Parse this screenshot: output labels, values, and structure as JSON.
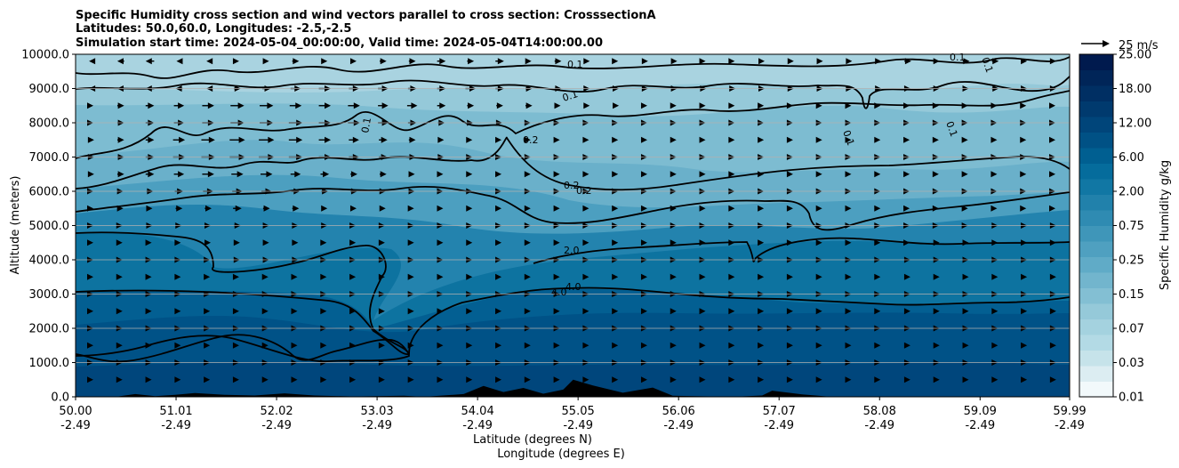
{
  "chart_data": {
    "type": "contourf",
    "title_lines": [
      "Specific Humidity cross section and wind vectors parallel to cross section: CrosssectionA",
      "Latitudes: 50.0,60.0, Longitudes: -2.5,-2.5",
      "Simulation start time: 2024-05-04_00:00:00, Valid time: 2024-05-04T14:00:00.00"
    ],
    "ylabel": "Altitude (meters)",
    "xlabel_lat": "Latitude (degrees N)",
    "xlabel_lon": "Longitude (degrees E)",
    "ylim": [
      0,
      10000
    ],
    "yticks": [
      "0.0",
      "1000.0",
      "2000.0",
      "3000.0",
      "4000.0",
      "5000.0",
      "6000.0",
      "7000.0",
      "8000.0",
      "9000.0",
      "10000.0"
    ],
    "xlim": [
      50.0,
      59.99
    ],
    "xticks": [
      {
        "lat": "50.00",
        "lon": "-2.49"
      },
      {
        "lat": "51.01",
        "lon": "-2.49"
      },
      {
        "lat": "52.02",
        "lon": "-2.49"
      },
      {
        "lat": "53.03",
        "lon": "-2.49"
      },
      {
        "lat": "54.04",
        "lon": "-2.49"
      },
      {
        "lat": "55.05",
        "lon": "-2.49"
      },
      {
        "lat": "56.06",
        "lon": "-2.49"
      },
      {
        "lat": "57.07",
        "lon": "-2.49"
      },
      {
        "lat": "58.08",
        "lon": "-2.49"
      },
      {
        "lat": "59.09",
        "lon": "-2.49"
      },
      {
        "lat": "59.99",
        "lon": "-2.49"
      }
    ],
    "colorbar": {
      "label": "Specific Humidity g/kg",
      "levels": [
        0.01,
        0.02,
        0.03,
        0.05,
        0.07,
        0.1,
        0.15,
        0.25,
        0.35,
        0.5,
        0.75,
        1.0,
        1.5,
        2.0,
        3.0,
        4.0,
        6.0,
        8.0,
        12.0,
        15.0,
        18.0,
        22.0,
        25.0
      ],
      "tick_labels": [
        "0.01",
        "0.03",
        "0.07",
        "0.15",
        "0.25",
        "0.75",
        "2.00",
        "6.00",
        "12.00",
        "18.00",
        "25.00"
      ],
      "colors": [
        "#f2f9fb",
        "#dcedf2",
        "#c6e3ea",
        "#b3dae5",
        "#a4d2df",
        "#95c9d9",
        "#83bfd3",
        "#72b5cd",
        "#60abc7",
        "#4fa0c0",
        "#3f96b9",
        "#2f8bb2",
        "#2181ab",
        "#1177a4",
        "#056c9c",
        "#005f91",
        "#005185",
        "#00457a",
        "#003a6e",
        "#002f63",
        "#002558",
        "#001a4e"
      ]
    },
    "contour_labels": [
      "0.1",
      "0.1",
      "0.1",
      "0.1",
      "0.1",
      "0.1",
      "0.1",
      "0.2",
      "0.2",
      "0.2",
      "2.0",
      "4.0",
      "4.0"
    ],
    "quiver_key": {
      "label": "25 m/s",
      "speed": 25
    },
    "wind_rows": [
      {
        "alt": 9800,
        "u": [
          -6,
          -8,
          -10,
          -6,
          -4,
          4,
          6,
          8,
          6,
          6,
          8,
          8,
          10,
          8,
          10,
          6,
          8,
          6,
          4,
          6,
          6,
          4,
          4,
          6,
          6,
          6,
          6,
          6,
          8,
          6,
          8,
          8,
          6,
          6
        ]
      },
      {
        "alt": 9000,
        "u": [
          -6,
          -8,
          -10,
          -8,
          -4,
          8,
          10,
          12,
          14,
          12,
          12,
          10,
          10,
          12,
          10,
          8,
          8,
          6,
          6,
          6,
          6,
          6,
          6,
          6,
          6,
          6,
          6,
          6,
          6,
          6,
          6,
          8,
          6,
          6
        ]
      },
      {
        "alt": 8500,
        "u": [
          4,
          8,
          10,
          12,
          14,
          16,
          16,
          14,
          14,
          14,
          12,
          12,
          10,
          8,
          8,
          8,
          6,
          6,
          6,
          4,
          4,
          4,
          4,
          4,
          4,
          4,
          4,
          4,
          4,
          4,
          4,
          4,
          4,
          4
        ]
      },
      {
        "alt": 8000,
        "u": [
          4,
          8,
          10,
          12,
          14,
          16,
          16,
          16,
          14,
          14,
          12,
          10,
          8,
          6,
          6,
          4,
          4,
          4,
          4,
          4,
          4,
          4,
          4,
          4,
          4,
          4,
          4,
          4,
          4,
          4,
          4,
          4,
          4,
          4
        ]
      },
      {
        "alt": 7500,
        "u": [
          6,
          8,
          10,
          14,
          16,
          18,
          18,
          16,
          14,
          12,
          10,
          8,
          6,
          4,
          4,
          4,
          4,
          4,
          4,
          4,
          4,
          4,
          4,
          4,
          4,
          4,
          4,
          4,
          4,
          4,
          4,
          4,
          4,
          4
        ]
      },
      {
        "alt": 7000,
        "u": [
          6,
          8,
          10,
          14,
          16,
          18,
          18,
          16,
          14,
          12,
          10,
          8,
          6,
          4,
          4,
          4,
          4,
          4,
          4,
          4,
          4,
          4,
          4,
          4,
          4,
          4,
          4,
          4,
          4,
          4,
          4,
          4,
          4,
          4
        ]
      },
      {
        "alt": 6500,
        "u": [
          6,
          8,
          10,
          12,
          14,
          14,
          14,
          12,
          10,
          8,
          8,
          6,
          4,
          4,
          4,
          4,
          4,
          4,
          4,
          4,
          4,
          4,
          4,
          4,
          4,
          4,
          4,
          4,
          4,
          4,
          4,
          4,
          4,
          4
        ]
      },
      {
        "alt": 6000,
        "u": [
          4,
          6,
          8,
          10,
          12,
          12,
          12,
          10,
          8,
          8,
          6,
          6,
          4,
          4,
          4,
          4,
          4,
          4,
          4,
          4,
          4,
          4,
          4,
          4,
          4,
          4,
          4,
          4,
          4,
          4,
          4,
          4,
          4,
          4
        ]
      },
      {
        "alt": 5500,
        "u": [
          4,
          6,
          6,
          8,
          8,
          10,
          8,
          8,
          6,
          6,
          6,
          4,
          4,
          4,
          4,
          4,
          4,
          4,
          4,
          4,
          4,
          4,
          4,
          4,
          4,
          4,
          4,
          4,
          4,
          4,
          4,
          4,
          4,
          4
        ]
      },
      {
        "alt": 5000,
        "u": [
          4,
          4,
          6,
          6,
          6,
          8,
          6,
          6,
          6,
          4,
          4,
          4,
          4,
          4,
          4,
          4,
          4,
          4,
          4,
          4,
          4,
          4,
          4,
          4,
          4,
          4,
          4,
          4,
          4,
          4,
          4,
          6,
          6,
          6
        ]
      },
      {
        "alt": 4500,
        "u": [
          4,
          4,
          4,
          4,
          6,
          6,
          6,
          6,
          4,
          4,
          4,
          4,
          4,
          4,
          4,
          4,
          4,
          4,
          4,
          4,
          4,
          4,
          4,
          4,
          4,
          4,
          4,
          4,
          4,
          6,
          6,
          6,
          6,
          6
        ]
      },
      {
        "alt": 4000,
        "u": [
          4,
          4,
          4,
          4,
          4,
          6,
          6,
          6,
          4,
          4,
          4,
          4,
          4,
          4,
          4,
          4,
          4,
          4,
          4,
          4,
          4,
          4,
          4,
          4,
          4,
          4,
          4,
          4,
          6,
          6,
          6,
          6,
          6,
          6
        ]
      },
      {
        "alt": 3500,
        "u": [
          4,
          4,
          4,
          4,
          4,
          4,
          4,
          4,
          4,
          4,
          4,
          4,
          4,
          4,
          4,
          4,
          4,
          4,
          4,
          4,
          4,
          4,
          4,
          4,
          4,
          4,
          4,
          4,
          6,
          6,
          6,
          6,
          6,
          6
        ]
      },
      {
        "alt": 3000,
        "u": [
          4,
          4,
          4,
          4,
          4,
          4,
          4,
          4,
          4,
          4,
          4,
          4,
          4,
          4,
          4,
          4,
          4,
          4,
          4,
          4,
          4,
          4,
          4,
          4,
          4,
          4,
          4,
          4,
          6,
          6,
          6,
          6,
          6,
          6
        ]
      },
      {
        "alt": 2500,
        "u": [
          4,
          4,
          4,
          4,
          4,
          4,
          4,
          4,
          4,
          4,
          4,
          4,
          4,
          4,
          4,
          4,
          4,
          4,
          4,
          4,
          4,
          4,
          4,
          4,
          4,
          4,
          4,
          4,
          6,
          6,
          6,
          6,
          6,
          6
        ]
      },
      {
        "alt": 2000,
        "u": [
          4,
          4,
          4,
          4,
          4,
          4,
          4,
          4,
          4,
          4,
          4,
          4,
          4,
          4,
          4,
          4,
          4,
          4,
          4,
          4,
          4,
          4,
          4,
          4,
          4,
          4,
          4,
          4,
          6,
          6,
          6,
          6,
          6,
          6
        ]
      },
      {
        "alt": 1500,
        "u": [
          4,
          4,
          4,
          4,
          4,
          4,
          4,
          4,
          4,
          4,
          4,
          4,
          4,
          4,
          4,
          4,
          4,
          4,
          4,
          4,
          4,
          4,
          4,
          4,
          4,
          4,
          4,
          4,
          6,
          6,
          6,
          6,
          6,
          6
        ]
      },
      {
        "alt": 1000,
        "u": [
          4,
          4,
          4,
          4,
          4,
          4,
          4,
          4,
          4,
          4,
          4,
          4,
          4,
          4,
          4,
          4,
          4,
          4,
          4,
          4,
          4,
          4,
          4,
          4,
          4,
          4,
          4,
          4,
          6,
          6,
          6,
          6,
          6,
          6
        ]
      },
      {
        "alt": 500,
        "u": [
          4,
          4,
          4,
          4,
          4,
          4,
          4,
          4,
          4,
          4,
          4,
          4,
          4,
          4,
          4,
          4,
          4,
          4,
          4,
          4,
          4,
          4,
          4,
          4,
          4,
          4,
          4,
          4,
          6,
          6,
          6,
          6,
          6,
          6
        ]
      }
    ],
    "terrain": [
      [
        50.0,
        0
      ],
      [
        50.4,
        0
      ],
      [
        50.6,
        80
      ],
      [
        50.8,
        20
      ],
      [
        51.0,
        60
      ],
      [
        51.2,
        110
      ],
      [
        51.5,
        60
      ],
      [
        51.8,
        40
      ],
      [
        52.1,
        100
      ],
      [
        52.4,
        40
      ],
      [
        52.8,
        10
      ],
      [
        53.3,
        30
      ],
      [
        53.5,
        0
      ],
      [
        53.9,
        80
      ],
      [
        54.1,
        320
      ],
      [
        54.3,
        140
      ],
      [
        54.5,
        260
      ],
      [
        54.7,
        90
      ],
      [
        54.9,
        210
      ],
      [
        55.0,
        500
      ],
      [
        55.2,
        330
      ],
      [
        55.5,
        120
      ],
      [
        55.8,
        270
      ],
      [
        56.0,
        30
      ],
      [
        56.6,
        0
      ],
      [
        56.9,
        40
      ],
      [
        57.0,
        180
      ],
      [
        57.3,
        70
      ],
      [
        57.6,
        0
      ],
      [
        59.99,
        0
      ]
    ]
  }
}
